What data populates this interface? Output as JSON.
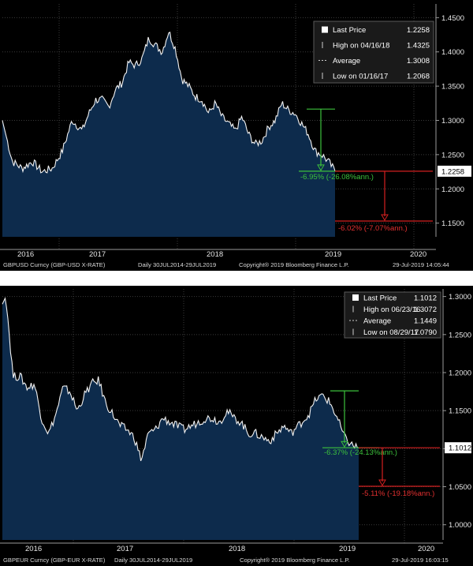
{
  "chart_data": [
    {
      "type": "area",
      "footer": {
        "ticker": "GBPUSD Curncy (GBP-USD X-RATE)",
        "range": "Daily 30JUL2014-29JUL2019",
        "copyright": "Copyright® 2019 Bloomberg Finance L.P.",
        "timestamp": "29-Jul-2019 14:05:44"
      },
      "x_labels": [
        "2016",
        "2017",
        "2018",
        "2019",
        "2020"
      ],
      "y_ticks": [
        "1.4500",
        "1.4000",
        "1.3500",
        "1.3000",
        "1.2500",
        "1.2000",
        "1.1500"
      ],
      "ylim": [
        1.13,
        1.47
      ],
      "legend": {
        "last_price_label": "Last Price",
        "last_price_value": "1.2258",
        "high_label": "High on 04/16/18",
        "high_value": "1.4325",
        "average_label": "Average",
        "average_value": "1.3008",
        "low_label": "Low on 01/16/17",
        "low_value": "1.2068"
      },
      "last_price_tag": "1.2258",
      "annotation_green": "-6.95% (-26.08%ann.)",
      "annotation_red": "-6.02% (-7.07%ann.)",
      "series": [
        {
          "x": [
            0.0,
            0.03,
            0.06,
            0.09,
            0.12,
            0.15,
            0.18,
            0.21,
            0.24,
            0.26,
            0.28,
            0.3,
            0.32,
            0.34,
            0.36,
            0.38,
            0.4,
            0.42,
            0.44,
            0.46,
            0.48,
            0.5,
            0.52,
            0.54,
            0.56,
            0.58,
            0.6,
            0.62,
            0.64,
            0.66,
            0.68,
            0.7,
            0.72,
            0.74,
            0.76,
            0.78,
            0.8,
            0.82,
            0.84,
            0.86,
            0.88,
            0.9,
            0.92,
            0.94,
            0.96,
            0.98,
            1.0
          ],
          "values": [
            1.3,
            1.24,
            1.23,
            1.24,
            1.225,
            1.23,
            1.255,
            1.3,
            1.285,
            1.31,
            1.33,
            1.33,
            1.32,
            1.345,
            1.355,
            1.385,
            1.38,
            1.39,
            1.42,
            1.41,
            1.4,
            1.43,
            1.405,
            1.36,
            1.35,
            1.335,
            1.33,
            1.31,
            1.325,
            1.305,
            1.295,
            1.285,
            1.305,
            1.28,
            1.265,
            1.27,
            1.29,
            1.3,
            1.325,
            1.315,
            1.31,
            1.295,
            1.28,
            1.255,
            1.25,
            1.24,
            1.2258
          ]
        }
      ]
    },
    {
      "type": "area",
      "footer": {
        "ticker": "GBPEUR Curncy (GBP-EUR X-RATE)",
        "range": "Daily 30JUL2014-29JUL2019",
        "copyright": "Copyright® 2019 Bloomberg Finance L.P.",
        "timestamp": "29-Jul-2019 16:03:15"
      },
      "x_labels": [
        "2016",
        "2017",
        "2018",
        "2019",
        "2020"
      ],
      "y_ticks": [
        "1.3000",
        "1.2500",
        "1.2000",
        "1.1500",
        "1.1000",
        "1.0500",
        "1.0000"
      ],
      "ylim": [
        0.98,
        1.31
      ],
      "legend": {
        "last_price_label": "Last Price",
        "last_price_value": "1.1012",
        "high_label": "High on 06/23/16",
        "high_value": "1.3072",
        "average_label": "Average",
        "average_value": "1.1449",
        "low_label": "Low on 08/29/17",
        "low_value": "1.0790"
      },
      "last_price_tag": "1.1012",
      "annotation_green": "-6.37% (-24.13%ann.)",
      "annotation_red": "-5.11% (-19.18%ann.)",
      "series": [
        {
          "x": [
            0.0,
            0.01,
            0.03,
            0.05,
            0.07,
            0.09,
            0.11,
            0.13,
            0.15,
            0.17,
            0.19,
            0.21,
            0.23,
            0.25,
            0.27,
            0.29,
            0.31,
            0.33,
            0.35,
            0.37,
            0.39,
            0.41,
            0.43,
            0.45,
            0.47,
            0.49,
            0.51,
            0.53,
            0.55,
            0.57,
            0.59,
            0.61,
            0.63,
            0.65,
            0.67,
            0.69,
            0.71,
            0.73,
            0.75,
            0.77,
            0.79,
            0.81,
            0.83,
            0.86,
            0.88,
            0.9,
            0.92,
            0.94,
            0.96,
            0.98,
            1.0
          ],
          "values": [
            1.29,
            1.3,
            1.195,
            1.195,
            1.18,
            1.185,
            1.14,
            1.12,
            1.145,
            1.18,
            1.175,
            1.15,
            1.17,
            1.185,
            1.19,
            1.16,
            1.145,
            1.13,
            1.125,
            1.115,
            1.085,
            1.12,
            1.125,
            1.14,
            1.135,
            1.13,
            1.125,
            1.13,
            1.135,
            1.14,
            1.14,
            1.135,
            1.15,
            1.14,
            1.135,
            1.12,
            1.12,
            1.115,
            1.11,
            1.12,
            1.13,
            1.12,
            1.13,
            1.145,
            1.165,
            1.17,
            1.16,
            1.14,
            1.115,
            1.105,
            1.1012
          ]
        }
      ]
    }
  ]
}
